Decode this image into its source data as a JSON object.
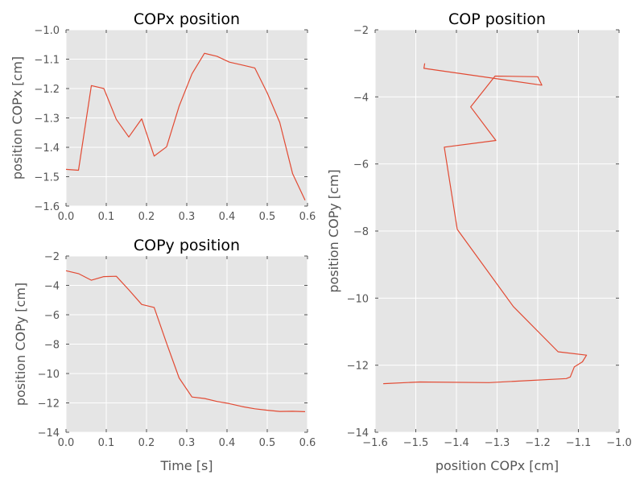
{
  "chart_data": [
    {
      "id": "copx",
      "type": "line",
      "title": "COPx position",
      "xlabel": "",
      "ylabel": "position COPx [cm]",
      "xlim": [
        0.0,
        0.6
      ],
      "ylim": [
        -1.6,
        -1.0
      ],
      "xticks": [
        0.0,
        0.1,
        0.2,
        0.3,
        0.4,
        0.5,
        0.6
      ],
      "xtick_labels": [
        "0.0",
        "0.1",
        "0.2",
        "0.3",
        "0.4",
        "0.5",
        "0.6"
      ],
      "yticks": [
        -1.6,
        -1.5,
        -1.4,
        -1.3,
        -1.2,
        -1.1,
        -1.0
      ],
      "ytick_labels": [
        "−1.6",
        "−1.5",
        "−1.4",
        "−1.3",
        "−1.2",
        "−1.1",
        "−1.0"
      ],
      "grid": true,
      "series": [
        {
          "color": "#e24a33",
          "x": [
            0.0,
            0.031,
            0.063,
            0.094,
            0.125,
            0.156,
            0.188,
            0.219,
            0.25,
            0.281,
            0.313,
            0.344,
            0.375,
            0.406,
            0.438,
            0.469,
            0.5,
            0.531,
            0.563,
            0.594
          ],
          "y": [
            -1.475,
            -1.478,
            -1.19,
            -1.2,
            -1.305,
            -1.365,
            -1.303,
            -1.43,
            -1.398,
            -1.26,
            -1.15,
            -1.08,
            -1.09,
            -1.11,
            -1.12,
            -1.13,
            -1.215,
            -1.315,
            -1.49,
            -1.58
          ]
        }
      ]
    },
    {
      "id": "copy",
      "type": "line",
      "title": "COPy position",
      "xlabel": "Time [s]",
      "ylabel": "position COPy [cm]",
      "xlim": [
        0.0,
        0.6
      ],
      "ylim": [
        -14,
        -2
      ],
      "xticks": [
        0.0,
        0.1,
        0.2,
        0.3,
        0.4,
        0.5,
        0.6
      ],
      "xtick_labels": [
        "0.0",
        "0.1",
        "0.2",
        "0.3",
        "0.4",
        "0.5",
        "0.6"
      ],
      "yticks": [
        -14,
        -12,
        -10,
        -8,
        -6,
        -4,
        -2
      ],
      "ytick_labels": [
        "−14",
        "−12",
        "−10",
        "−8",
        "−6",
        "−4",
        "−2"
      ],
      "grid": true,
      "series": [
        {
          "color": "#e24a33",
          "x": [
            0.0,
            0.031,
            0.063,
            0.094,
            0.125,
            0.156,
            0.188,
            0.219,
            0.25,
            0.281,
            0.313,
            0.344,
            0.375,
            0.406,
            0.438,
            0.469,
            0.5,
            0.531,
            0.563,
            0.594
          ],
          "y": [
            -3.0,
            -3.2,
            -3.65,
            -3.4,
            -3.38,
            -4.3,
            -5.3,
            -5.5,
            -7.95,
            -10.3,
            -11.6,
            -11.7,
            -11.9,
            -12.05,
            -12.25,
            -12.4,
            -12.5,
            -12.58,
            -12.57,
            -12.6
          ]
        }
      ]
    },
    {
      "id": "cop",
      "type": "line",
      "title": "COP position",
      "xlabel": "position COPx [cm]",
      "ylabel": "position COPy [cm]",
      "xlim": [
        -1.6,
        -1.0
      ],
      "ylim": [
        -14,
        -2
      ],
      "xticks": [
        -1.6,
        -1.5,
        -1.4,
        -1.3,
        -1.2,
        -1.1,
        -1.0
      ],
      "xtick_labels": [
        "−1.6",
        "−1.5",
        "−1.4",
        "−1.3",
        "−1.2",
        "−1.1",
        "−1.0"
      ],
      "yticks": [
        -14,
        -12,
        -10,
        -8,
        -6,
        -4,
        -2
      ],
      "ytick_labels": [
        "−14",
        "−12",
        "−10",
        "−8",
        "−6",
        "−4",
        "−2"
      ],
      "grid": true,
      "series": [
        {
          "color": "#e24a33",
          "x": [
            -1.478,
            -1.48,
            -1.19,
            -1.2,
            -1.305,
            -1.365,
            -1.303,
            -1.43,
            -1.398,
            -1.26,
            -1.15,
            -1.08,
            -1.09,
            -1.11,
            -1.12,
            -1.13,
            -1.32,
            -1.49,
            -1.58
          ],
          "y": [
            -3.0,
            -3.15,
            -3.65,
            -3.4,
            -3.38,
            -4.3,
            -5.3,
            -5.5,
            -7.95,
            -10.25,
            -11.6,
            -11.7,
            -11.9,
            -12.05,
            -12.35,
            -12.4,
            -12.52,
            -12.5,
            -12.55
          ]
        }
      ]
    }
  ]
}
